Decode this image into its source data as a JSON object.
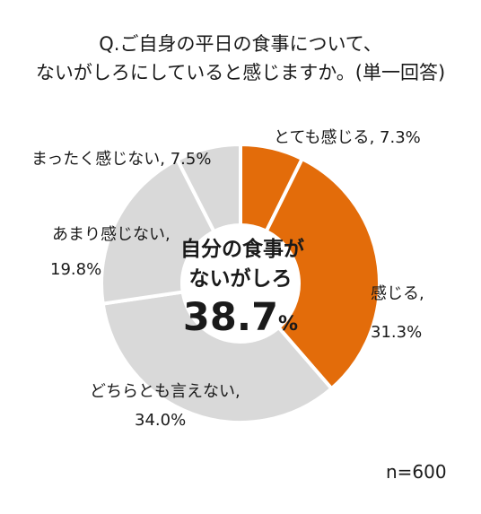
{
  "chart_data": {
    "type": "pie",
    "title_line1": "Q.ご自身の平日の食事について、",
    "title_line2": "ないがしろにしていると感じますか。(単一回答)",
    "slices": [
      {
        "label": "とても感じる",
        "value": 7.3,
        "value_text": "7.3%",
        "color": "#E36C0A"
      },
      {
        "label": "感じる",
        "value": 31.3,
        "value_text": "31.3%",
        "color": "#E36C0A"
      },
      {
        "label": "どちらとも言えない",
        "value": 34.0,
        "value_text": "34.0%",
        "color": "#D9D9D9"
      },
      {
        "label": "あまり感じない",
        "value": 19.8,
        "value_text": "19.8%",
        "color": "#D9D9D9"
      },
      {
        "label": "まったく感じない",
        "value": 7.5,
        "value_text": "7.5%",
        "color": "#D9D9D9"
      }
    ],
    "center": {
      "line1": "自分の食事が",
      "line2": "ないがしろ",
      "value_big": "38.7",
      "value_unit": "%"
    },
    "n_label": "n=600"
  }
}
